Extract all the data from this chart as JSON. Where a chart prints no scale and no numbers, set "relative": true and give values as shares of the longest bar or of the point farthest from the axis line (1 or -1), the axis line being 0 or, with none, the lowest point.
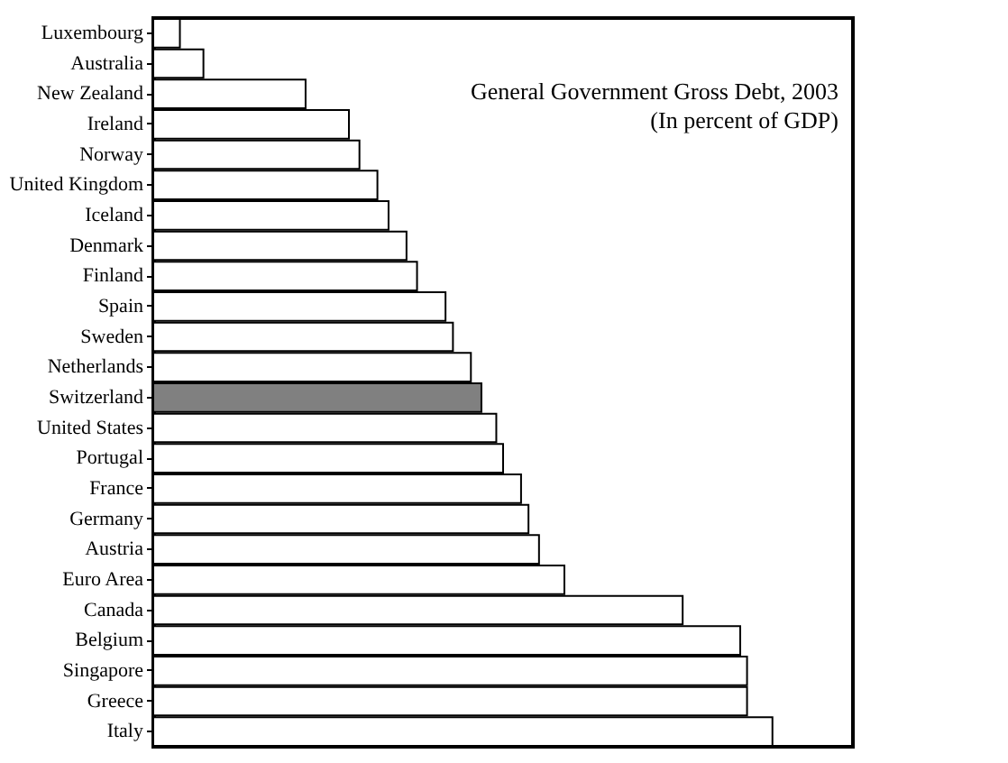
{
  "chart_data": {
    "type": "bar",
    "orientation": "horizontal",
    "relative": true,
    "title": "General Government Gross Debt, 2003",
    "subtitle": "(In percent of GDP)",
    "categories": [
      "Luxembourg",
      "Australia",
      "New Zealand",
      "Ireland",
      "Norway",
      "United Kingdom",
      "Iceland",
      "Denmark",
      "Finland",
      "Spain",
      "Sweden",
      "Netherlands",
      "Switzerland",
      "United States",
      "Portugal",
      "France",
      "Germany",
      "Austria",
      "Euro Area",
      "Canada",
      "Belgium",
      "Singapore",
      "Greece",
      "Italy"
    ],
    "values": [
      0.043,
      0.081,
      0.246,
      0.316,
      0.333,
      0.362,
      0.38,
      0.409,
      0.426,
      0.472,
      0.484,
      0.513,
      0.53,
      0.554,
      0.565,
      0.594,
      0.606,
      0.623,
      0.664,
      0.855,
      0.948,
      0.959,
      0.959,
      1
    ],
    "colors": [
      "#ffffff",
      "#ffffff",
      "#ffffff",
      "#ffffff",
      "#ffffff",
      "#ffffff",
      "#ffffff",
      "#ffffff",
      "#ffffff",
      "#ffffff",
      "#ffffff",
      "#ffffff",
      "#808080",
      "#ffffff",
      "#ffffff",
      "#ffffff",
      "#ffffff",
      "#ffffff",
      "#ffffff",
      "#ffffff",
      "#ffffff",
      "#ffffff",
      "#ffffff",
      "#ffffff"
    ]
  }
}
